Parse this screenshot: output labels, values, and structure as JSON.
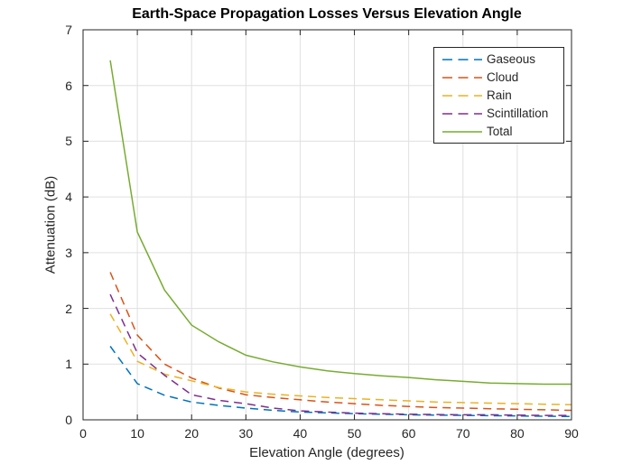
{
  "style": {
    "background": "#FFFFFF",
    "axis_color": "#262626",
    "grid_color": "#E0E0E0",
    "text_color": "#262626"
  },
  "chart_data": {
    "type": "line",
    "title": "Earth-Space Propagation Losses Versus Elevation Angle",
    "xlabel": "Elevation Angle (degrees)",
    "ylabel": "Attenuation (dB)",
    "xlim": [
      0,
      90
    ],
    "ylim": [
      0,
      7
    ],
    "xticks": [
      0,
      10,
      20,
      30,
      40,
      50,
      60,
      70,
      80,
      90
    ],
    "yticks": [
      0,
      1,
      2,
      3,
      4,
      5,
      6,
      7
    ],
    "grid": true,
    "legend_position": "top-right",
    "x": [
      5,
      10,
      15,
      20,
      25,
      30,
      35,
      40,
      45,
      50,
      55,
      60,
      65,
      70,
      75,
      80,
      85,
      90
    ],
    "series": [
      {
        "name": "Gaseous",
        "color": "#0072BD",
        "style": "dashed",
        "values": [
          1.32,
          0.65,
          0.44,
          0.32,
          0.26,
          0.21,
          0.17,
          0.14,
          0.125,
          0.11,
          0.1,
          0.09,
          0.085,
          0.08,
          0.075,
          0.07,
          0.065,
          0.06
        ]
      },
      {
        "name": "Cloud",
        "color": "#D95319",
        "style": "dashed",
        "values": [
          2.65,
          1.52,
          1.0,
          0.75,
          0.57,
          0.45,
          0.4,
          0.36,
          0.32,
          0.29,
          0.26,
          0.24,
          0.22,
          0.21,
          0.2,
          0.19,
          0.18,
          0.17
        ]
      },
      {
        "name": "Rain",
        "color": "#EDB120",
        "style": "dashed",
        "values": [
          1.9,
          1.05,
          0.82,
          0.7,
          0.58,
          0.5,
          0.46,
          0.43,
          0.4,
          0.38,
          0.36,
          0.34,
          0.32,
          0.31,
          0.3,
          0.29,
          0.28,
          0.27
        ]
      },
      {
        "name": "Scintillation",
        "color": "#7E2F8E",
        "style": "dashed",
        "values": [
          2.25,
          1.2,
          0.8,
          0.45,
          0.35,
          0.29,
          0.21,
          0.16,
          0.14,
          0.12,
          0.11,
          0.1,
          0.095,
          0.09,
          0.09,
          0.085,
          0.08,
          0.08
        ]
      },
      {
        "name": "Total",
        "color": "#77AC30",
        "style": "solid",
        "values": [
          6.45,
          3.37,
          2.33,
          1.7,
          1.4,
          1.16,
          1.04,
          0.95,
          0.88,
          0.83,
          0.79,
          0.76,
          0.72,
          0.69,
          0.66,
          0.65,
          0.64,
          0.64
        ]
      }
    ]
  }
}
